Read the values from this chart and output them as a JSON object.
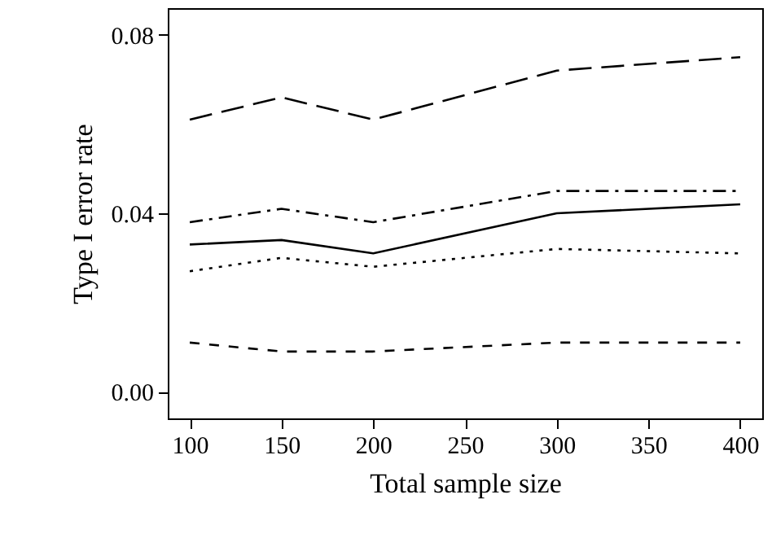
{
  "chart_data": {
    "type": "line",
    "xlabel": "Total sample size",
    "ylabel": "Type I error rate",
    "x": [
      100,
      150,
      200,
      300,
      400
    ],
    "series": [
      {
        "color": "#000000",
        "line_style": "longdash",
        "values": [
          0.061,
          0.066,
          0.061,
          0.072,
          0.075
        ]
      },
      {
        "color": "#000000",
        "line_style": "dashdot",
        "values": [
          0.038,
          0.041,
          0.038,
          0.045,
          0.045
        ]
      },
      {
        "color": "#000000",
        "line_style": "solid",
        "values": [
          0.033,
          0.034,
          0.031,
          0.04,
          0.042
        ]
      },
      {
        "color": "#000000",
        "line_style": "dotted",
        "values": [
          0.027,
          0.03,
          0.028,
          0.032,
          0.031
        ]
      },
      {
        "color": "#000000",
        "line_style": "dashed",
        "values": [
          0.011,
          0.009,
          0.009,
          0.011,
          0.011
        ]
      }
    ],
    "xlim": [
      88,
      412
    ],
    "xticks": [
      100,
      150,
      200,
      250,
      300,
      350,
      400
    ],
    "ylim": [
      -0.006,
      0.086
    ],
    "yticks": [
      {
        "value": 0,
        "label": "0.00"
      },
      {
        "value": 0.04,
        "label": "0.04"
      },
      {
        "value": 0.08,
        "label": "0.08"
      }
    ],
    "marker": "none"
  }
}
